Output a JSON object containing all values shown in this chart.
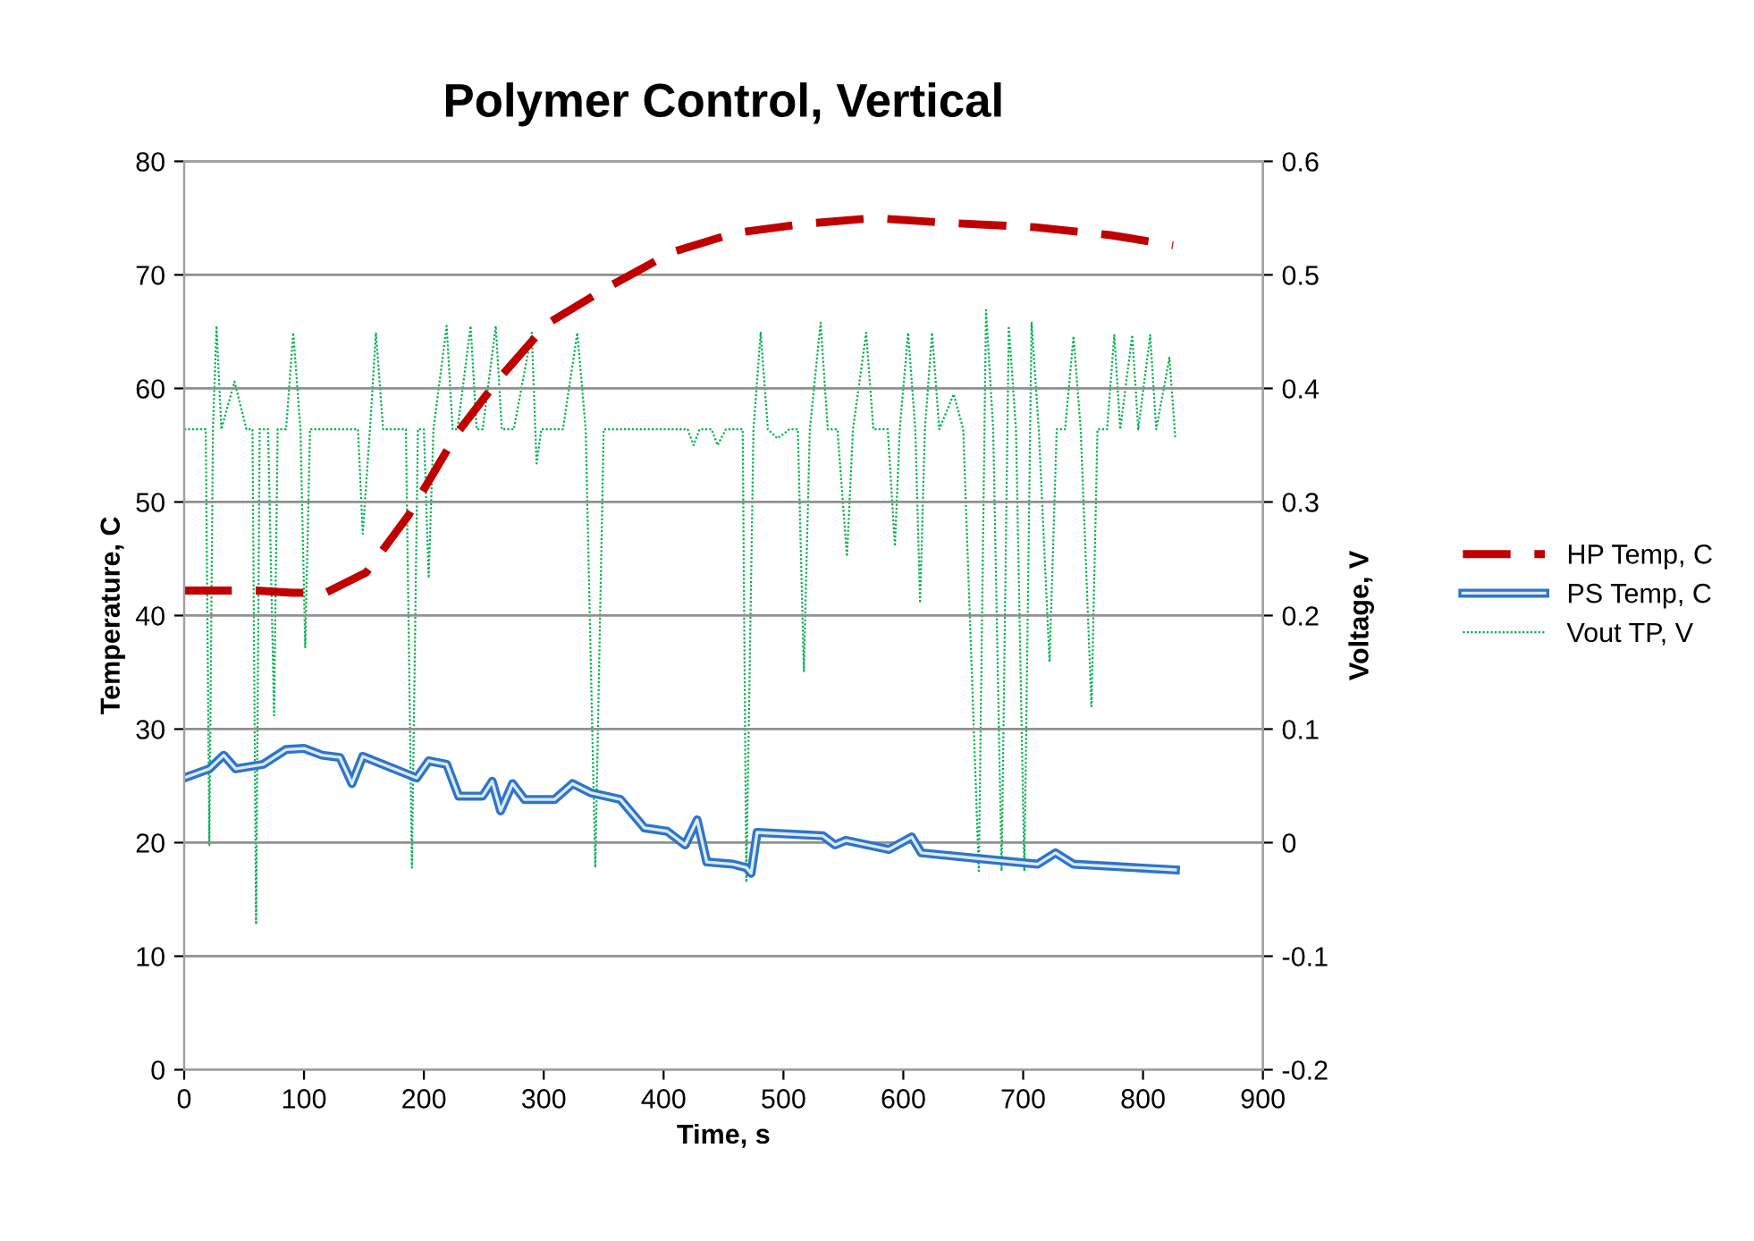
{
  "chart_data": {
    "type": "line",
    "title": "Polymer Control, Vertical",
    "xlabel": "Time, s",
    "ylabel": "Temperature, C",
    "y2label": "Voltage, V",
    "xlim": [
      0,
      900
    ],
    "xticks": [
      0,
      100,
      200,
      300,
      400,
      500,
      600,
      700,
      800,
      900
    ],
    "ylim": [
      0,
      80
    ],
    "yticks": [
      0,
      10,
      20,
      30,
      40,
      50,
      60,
      70,
      80
    ],
    "y2lim": [
      -0.2,
      0.6
    ],
    "y2ticks": [
      -0.2,
      -0.1,
      0,
      0.1,
      0.2,
      0.3,
      0.4,
      0.5,
      0.6
    ],
    "grid": "y",
    "legend": "right",
    "marker": "none",
    "series": [
      {
        "name": "HP Temp, C",
        "color": "#c00000",
        "line_style": "dashed",
        "x": [
          0,
          60,
          90,
          118,
          152,
          187,
          228,
          263,
          303,
          355,
          407,
          460,
          518,
          576,
          634,
          710,
          773,
          825
        ],
        "values": [
          42.2,
          42.2,
          42.0,
          42.0,
          43.8,
          48.8,
          56.1,
          60.9,
          65.7,
          69.0,
          72.0,
          73.7,
          74.5,
          75.0,
          74.6,
          74.2,
          73.5,
          72.6
        ]
      },
      {
        "name": "PS Temp, C",
        "color": "#2e75c8",
        "line_style": "solid",
        "x": [
          0,
          21,
          33,
          43,
          66,
          85,
          100,
          115,
          130,
          140,
          149,
          175,
          194,
          204,
          219,
          229,
          249,
          257,
          264,
          274,
          284,
          309,
          324,
          339,
          364,
          384,
          403,
          418,
          428,
          436,
          458,
          469,
          473,
          478,
          533,
          543,
          552,
          588,
          607,
          615,
          663,
          712,
          727,
          742,
          827
        ],
        "values": [
          25.7,
          26.5,
          27.7,
          26.5,
          26.9,
          28.2,
          28.3,
          27.7,
          27.5,
          25.2,
          27.6,
          26.5,
          25.7,
          27.2,
          26.9,
          24.1,
          24.1,
          25.4,
          22.8,
          25.2,
          23.8,
          23.8,
          25.2,
          24.4,
          23.8,
          21.3,
          21.0,
          19.8,
          22.0,
          18.3,
          18.1,
          17.8,
          17.3,
          20.9,
          20.6,
          19.8,
          20.2,
          19.4,
          20.5,
          19.1,
          18.6,
          18.1,
          19.1,
          18.1,
          17.6
        ]
      },
      {
        "name": "Vout TP, V",
        "color": "#00b050",
        "line_style": "dotted",
        "axis": "y2",
        "x": [
          0,
          18,
          21,
          24,
          27,
          31,
          42,
          52,
          57,
          60,
          63,
          70,
          75,
          78,
          85,
          91,
          97,
          101,
          105,
          125,
          137,
          145,
          149,
          155,
          160,
          166,
          185,
          190,
          195,
          200,
          204,
          208,
          219,
          224,
          228,
          239,
          244,
          249,
          260,
          265,
          275,
          290,
          294,
          298,
          316,
          328,
          335,
          343,
          350,
          420,
          425,
          430,
          440,
          445,
          452,
          466,
          469,
          475,
          481,
          487,
          495,
          505,
          512,
          517,
          522,
          531,
          537,
          545,
          553,
          558,
          569,
          575,
          587,
          593,
          597,
          604,
          610,
          614,
          618,
          624,
          630,
          642,
          650,
          663,
          669,
          675,
          682,
          688,
          694,
          701,
          707,
          713,
          722,
          728,
          735,
          742,
          748,
          757,
          762,
          770,
          776,
          781,
          791,
          796,
          806,
          811,
          822,
          827
        ],
        "values": [
          0.364,
          0.364,
          -0.002,
          0.364,
          0.455,
          0.364,
          0.406,
          0.364,
          0.364,
          -0.072,
          0.364,
          0.364,
          0.112,
          0.364,
          0.364,
          0.449,
          0.364,
          0.172,
          0.364,
          0.364,
          0.364,
          0.364,
          0.272,
          0.364,
          0.449,
          0.364,
          0.364,
          -0.022,
          0.364,
          0.364,
          0.233,
          0.364,
          0.455,
          0.364,
          0.364,
          0.455,
          0.364,
          0.364,
          0.455,
          0.364,
          0.364,
          0.449,
          0.334,
          0.364,
          0.364,
          0.449,
          0.364,
          -0.022,
          0.364,
          0.364,
          0.35,
          0.364,
          0.364,
          0.35,
          0.364,
          0.364,
          -0.035,
          0.364,
          0.449,
          0.364,
          0.356,
          0.364,
          0.364,
          0.151,
          0.364,
          0.458,
          0.364,
          0.364,
          0.252,
          0.364,
          0.449,
          0.364,
          0.364,
          0.261,
          0.364,
          0.449,
          0.364,
          0.211,
          0.364,
          0.449,
          0.364,
          0.395,
          0.364,
          -0.025,
          0.469,
          0.364,
          -0.025,
          0.455,
          0.364,
          -0.025,
          0.458,
          0.364,
          0.159,
          0.364,
          0.364,
          0.446,
          0.364,
          0.12,
          0.364,
          0.364,
          0.447,
          0.364,
          0.447,
          0.364,
          0.447,
          0.364,
          0.427,
          0.356
        ]
      }
    ]
  }
}
